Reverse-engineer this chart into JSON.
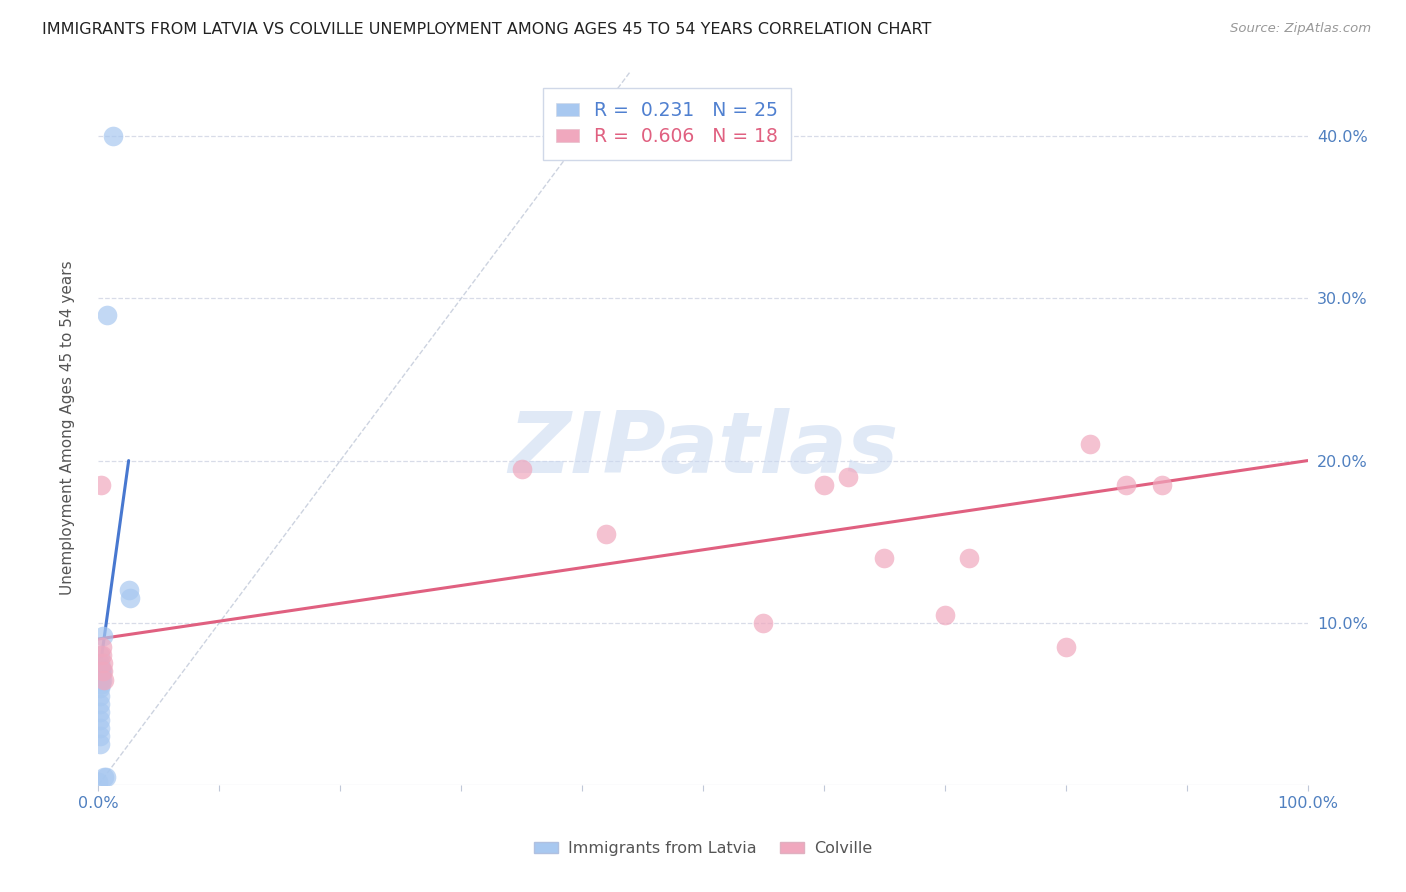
{
  "title": "IMMIGRANTS FROM LATVIA VS COLVILLE UNEMPLOYMENT AMONG AGES 45 TO 54 YEARS CORRELATION CHART",
  "source": "Source: ZipAtlas.com",
  "ylabel": "Unemployment Among Ages 45 to 54 years",
  "xlim": [
    0,
    1.0
  ],
  "ylim": [
    0,
    0.44
  ],
  "x_ticks": [
    0.0,
    0.1,
    0.2,
    0.3,
    0.4,
    0.5,
    0.6,
    0.7,
    0.8,
    0.9,
    1.0
  ],
  "y_ticks": [
    0.0,
    0.1,
    0.2,
    0.3,
    0.4
  ],
  "blue_label": "Immigrants from Latvia",
  "pink_label": "Colville",
  "blue_R": "0.231",
  "blue_N": "25",
  "pink_R": "0.606",
  "pink_N": "18",
  "blue_color": "#a8c8f0",
  "pink_color": "#f0a8be",
  "blue_line_color": "#4878d0",
  "pink_line_color": "#e06080",
  "ref_line_color": "#c0c8d8",
  "grid_color": "#d8dce8",
  "watermark": "ZIPatlas",
  "watermark_color": "#c8d8f0",
  "blue_points_x": [
    0.001,
    0.001,
    0.001,
    0.001,
    0.001,
    0.001,
    0.001,
    0.001,
    0.001,
    0.001,
    0.001,
    0.002,
    0.002,
    0.002,
    0.003,
    0.003,
    0.004,
    0.005,
    0.006,
    0.007,
    0.012,
    0.025,
    0.026,
    0.0,
    0.001
  ],
  "blue_points_y": [
    0.075,
    0.07,
    0.065,
    0.06,
    0.055,
    0.05,
    0.045,
    0.04,
    0.035,
    0.03,
    0.025,
    0.072,
    0.068,
    0.062,
    0.07,
    0.065,
    0.092,
    0.005,
    0.005,
    0.29,
    0.4,
    0.12,
    0.115,
    0.002,
    0.08
  ],
  "pink_points_x": [
    0.002,
    0.003,
    0.003,
    0.004,
    0.004,
    0.005,
    0.35,
    0.42,
    0.55,
    0.6,
    0.62,
    0.65,
    0.7,
    0.72,
    0.8,
    0.82,
    0.85,
    0.88
  ],
  "pink_points_y": [
    0.185,
    0.085,
    0.08,
    0.075,
    0.07,
    0.065,
    0.195,
    0.155,
    0.1,
    0.185,
    0.19,
    0.14,
    0.105,
    0.14,
    0.085,
    0.21,
    0.185,
    0.185
  ],
  "blue_line_x": [
    0.0,
    0.025
  ],
  "blue_line_y": [
    0.065,
    0.2
  ],
  "pink_line_x": [
    0.0,
    1.0
  ],
  "pink_line_y": [
    0.09,
    0.2
  ]
}
